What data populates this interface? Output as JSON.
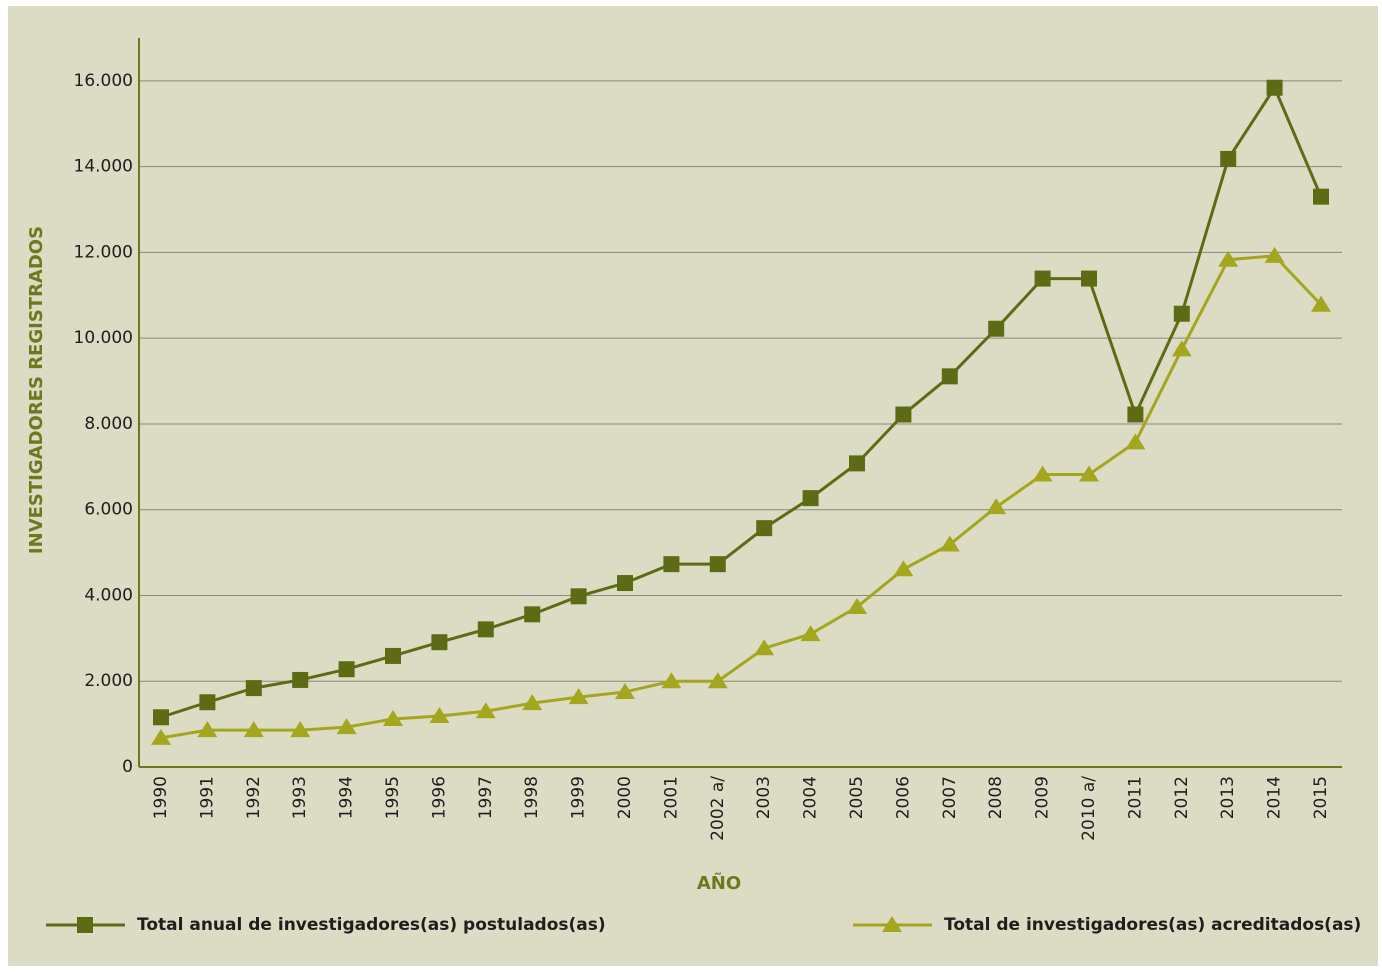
{
  "chart_data": {
    "type": "line",
    "x_label": "AÑO",
    "y_label": "INVESTIGADORES REGISTRADOS",
    "categories": [
      "1990",
      "1991",
      "1992",
      "1993",
      "1994",
      "1995",
      "1996",
      "1997",
      "1998",
      "1999",
      "2000",
      "2001",
      "2002 a/",
      "2003",
      "2004",
      "2005",
      "2006",
      "2007",
      "2008",
      "2009",
      "2010 a/",
      "2011",
      "2012",
      "2013",
      "2014",
      "2015"
    ],
    "series": [
      {
        "name": "Total anual de investigadores(as) postulados(as)",
        "color": "#5d6c14",
        "marker": "square",
        "values": [
          1160,
          1510,
          1840,
          2030,
          2280,
          2590,
          2910,
          3210,
          3560,
          3980,
          4290,
          4730,
          4730,
          5570,
          6270,
          7080,
          8220,
          9110,
          10220,
          11390,
          11390,
          8220,
          10570,
          14180,
          15840,
          13300
        ]
      },
      {
        "name": "Total de investigadores(as) acreditados(as)",
        "color": "#a4a61e",
        "marker": "triangle",
        "values": [
          680,
          860,
          860,
          860,
          930,
          1120,
          1190,
          1300,
          1490,
          1630,
          1750,
          2000,
          2000,
          2770,
          3100,
          3730,
          4610,
          5190,
          6060,
          6820,
          6820,
          7570,
          9740,
          11830,
          11920,
          10780
        ]
      }
    ],
    "ylim": [
      0,
      17000
    ],
    "yticks": [
      0,
      {
        "value": 2000,
        "label": "2.000"
      },
      {
        "value": 4000,
        "label": "4.000"
      },
      {
        "value": 6000,
        "label": "6.000"
      },
      {
        "value": 8000,
        "label": "8.000"
      },
      {
        "value": 10000,
        "label": "10.000"
      },
      {
        "value": 12000,
        "label": "12.000"
      },
      {
        "value": 14000,
        "label": "14.000"
      },
      {
        "value": 16000,
        "label": "16.000"
      }
    ],
    "grid": true,
    "legend": "bottom"
  }
}
